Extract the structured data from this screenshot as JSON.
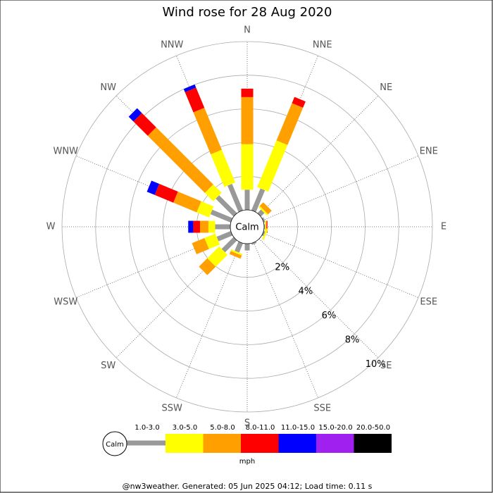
{
  "chart_data": {
    "type": "windrose",
    "title": "Wind rose for 28 Aug 2020",
    "directions": [
      "N",
      "NNE",
      "NE",
      "ENE",
      "E",
      "ESE",
      "SE",
      "SSE",
      "S",
      "SSW",
      "SW",
      "WSW",
      "W",
      "WNW",
      "NW",
      "NNW"
    ],
    "calm_label": "Calm",
    "unit": "mph",
    "rlim": [
      0,
      10
    ],
    "rticks": [
      {
        "value": 2,
        "label": "2%"
      },
      {
        "value": 4,
        "label": "4%"
      },
      {
        "value": 6,
        "label": "6%"
      },
      {
        "value": 8,
        "label": "8%"
      },
      {
        "value": 10,
        "label": "10%"
      }
    ],
    "series": [
      {
        "name": "1.0-3.0",
        "color": "#999999",
        "values": [
          1.2,
          1.4,
          0.3,
          0.1,
          0.05,
          0.1,
          0,
          0.1,
          0.4,
          0.6,
          1.0,
          0.9,
          0.9,
          1.3,
          1.5,
          1.7
        ]
      },
      {
        "name": "3.0-5.0",
        "color": "#ffff00",
        "values": [
          2.7,
          3.0,
          0.1,
          0,
          0.05,
          0.1,
          0,
          0,
          0,
          0.1,
          1.0,
          0.7,
          0.4,
          0.8,
          0.7,
          2.1
        ]
      },
      {
        "name": "5.0-8.0",
        "color": "#ffa000",
        "values": [
          2.8,
          2.4,
          0.3,
          0,
          0.05,
          0,
          0,
          0,
          0,
          0.2,
          0.7,
          0.8,
          0.5,
          1.5,
          4.8,
          2.7
        ]
      },
      {
        "name": "8.0-11.0",
        "color": "#ff0000",
        "values": [
          0.5,
          0.4,
          0,
          0,
          0.05,
          0,
          0,
          0,
          0,
          0,
          0,
          0,
          0.4,
          1.2,
          1.2,
          1.3
        ]
      },
      {
        "name": "11.0-15.0",
        "color": "#0000ff",
        "values": [
          0,
          0,
          0,
          0,
          0,
          0,
          0,
          0,
          0,
          0,
          0,
          0,
          0.3,
          0.5,
          0.4,
          0.2
        ]
      },
      {
        "name": "15.0-20.0",
        "color": "#a020f0",
        "values": [
          0,
          0,
          0,
          0,
          0,
          0,
          0,
          0,
          0,
          0,
          0,
          0,
          0,
          0,
          0,
          0
        ]
      },
      {
        "name": "20.0-50.0",
        "color": "#000000",
        "values": [
          0,
          0,
          0,
          0,
          0,
          0,
          0,
          0,
          0,
          0,
          0,
          0,
          0,
          0,
          0,
          0
        ]
      }
    ]
  },
  "footer": "@nw3weather.  Generated: 05 Jun 2025 04:12; Load time: 0.11 s"
}
